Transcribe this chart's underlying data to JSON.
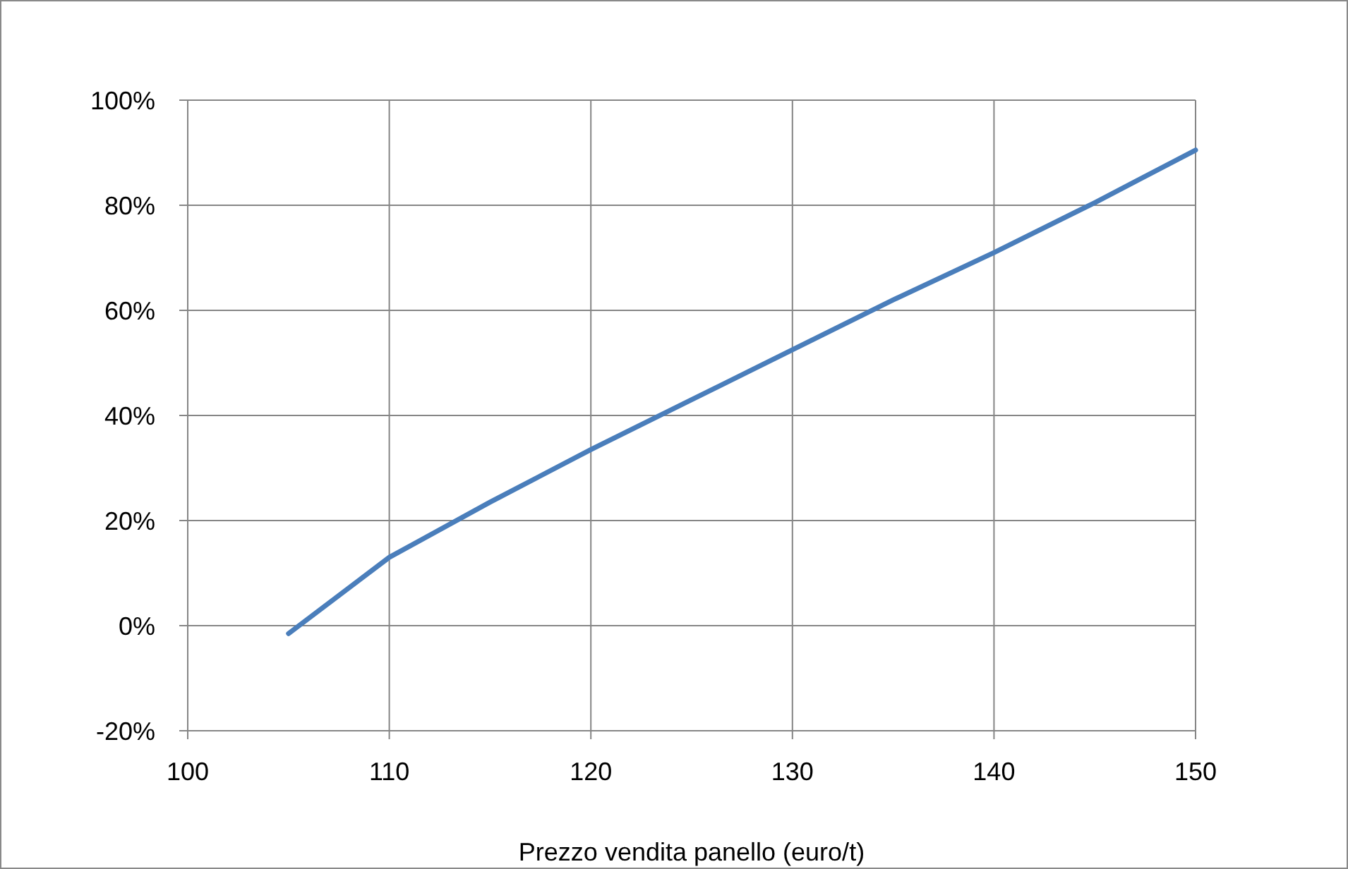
{
  "chart_data": {
    "type": "line",
    "xlabel": "Prezzo vendita panello (euro/t)",
    "x": [
      105,
      110,
      115,
      120,
      125,
      130,
      135,
      140,
      145,
      150
    ],
    "series": [
      {
        "color": "#4a7ebb",
        "values": [
          -1.5,
          13,
          23.5,
          33.5,
          43,
          52.5,
          62,
          71,
          80.5,
          90.5
        ]
      }
    ],
    "xlim": [
      100,
      150
    ],
    "xticks": [
      100,
      110,
      120,
      130,
      140,
      150
    ],
    "ylim": [
      -20,
      100
    ],
    "yticks": [
      {
        "value": -20,
        "label": "-20%"
      },
      {
        "value": 0,
        "label": "0%"
      },
      {
        "value": 20,
        "label": "20%"
      },
      {
        "value": 40,
        "label": "40%"
      },
      {
        "value": 60,
        "label": "60%"
      },
      {
        "value": 80,
        "label": "80%"
      },
      {
        "value": 100,
        "label": "100%"
      }
    ],
    "grid": true,
    "marker": "none",
    "line_style": "solid"
  }
}
